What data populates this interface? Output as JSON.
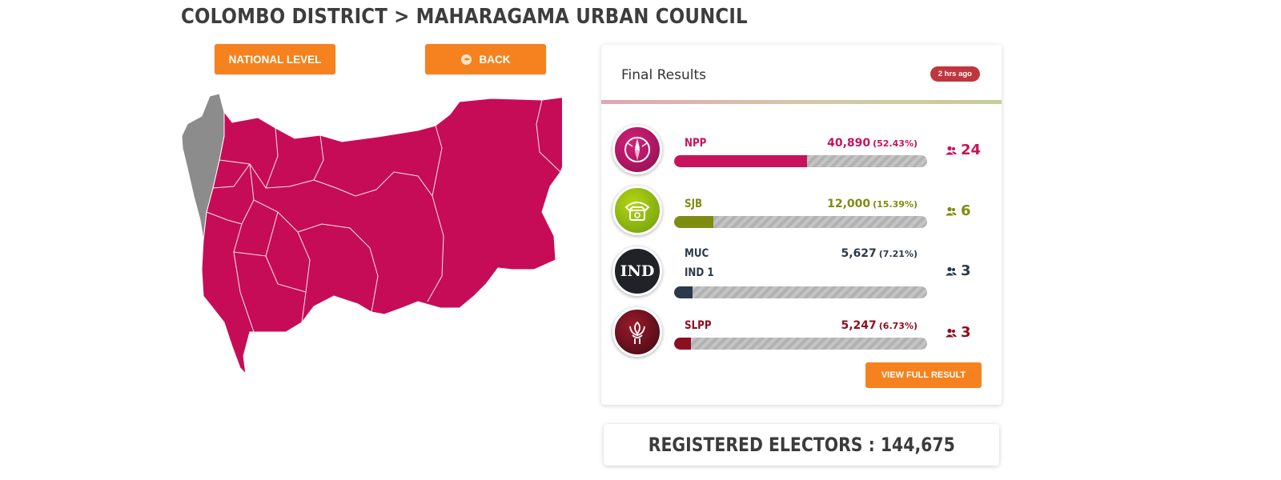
{
  "breadcrumb": {
    "district": "COLOMBO DISTRICT",
    "separator": ">",
    "council": "MAHARAGAMA URBAN COUNCIL"
  },
  "nav": {
    "national_label": "NATIONAL LEVEL",
    "back_label": "BACK"
  },
  "results": {
    "title": "Final Results",
    "updated": "2 hrs ago",
    "view_full_label": "VIEW FULL RESULT",
    "parties": [
      {
        "name": "NPP",
        "sub": "",
        "votes": "40,890",
        "pct": "(52.43%)",
        "share": 52.43,
        "seats": "24",
        "color": "#c8135c",
        "logo": "npp-compass-icon"
      },
      {
        "name": "SJB",
        "sub": "",
        "votes": "12,000",
        "pct": "(15.39%)",
        "share": 15.39,
        "seats": "6",
        "color": "#7e8c10",
        "logo": "sjb-telephone-icon"
      },
      {
        "name": "MUC",
        "sub": "IND 1",
        "votes": "5,627",
        "pct": "(7.21%)",
        "share": 7.21,
        "seats": "3",
        "color": "#2b3a4a",
        "logo": "ind-text-logo",
        "logo_text": "IND"
      },
      {
        "name": "SLPP",
        "sub": "",
        "votes": "5,247",
        "pct": "(6.73%)",
        "share": 6.73,
        "seats": "3",
        "color": "#8c1020",
        "logo": "slpp-lotus-icon"
      }
    ]
  },
  "electors": {
    "label": "REGISTERED ELECTORS : 144,675"
  },
  "map": {
    "highlight_color": "#c70c57",
    "other_color": "#8c8c8c"
  }
}
